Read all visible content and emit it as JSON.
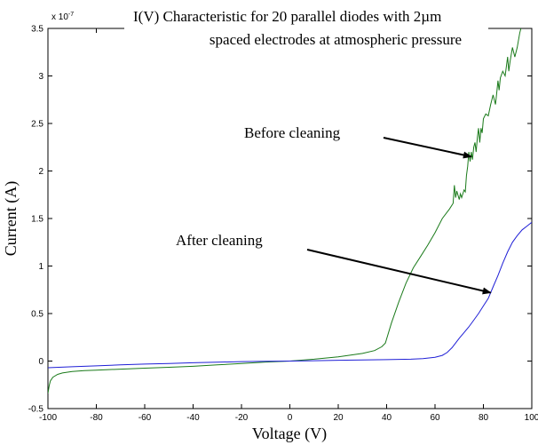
{
  "chart_data": {
    "type": "line",
    "title_line1": "I(V) Characteristic for 20 parallel diodes with 2µm",
    "title_line2": "spaced electrodes at atmospheric pressure",
    "xlabel": "Voltage (V)",
    "ylabel": "Current (A)",
    "y_exponent_label": "x 10",
    "y_exponent_power": "-7",
    "xlim": [
      -100,
      100
    ],
    "ylim": [
      -0.5,
      3.5
    ],
    "y_scale_factor": 1e-07,
    "x_ticks": [
      -100,
      -80,
      -60,
      -40,
      -20,
      0,
      20,
      40,
      60,
      80,
      100
    ],
    "y_ticks": [
      -0.5,
      0,
      0.5,
      1,
      1.5,
      2,
      2.5,
      3,
      3.5
    ],
    "grid": false,
    "annotations": [
      {
        "text": "Before cleaning",
        "arrow_to": [
          75,
          2.15
        ]
      },
      {
        "text": "After cleaning",
        "arrow_to": [
          83,
          0.72
        ]
      }
    ],
    "series": [
      {
        "color": "#1a7a1a",
        "points": [
          [
            -100,
            -0.34
          ],
          [
            -99.5,
            -0.26
          ],
          [
            -99,
            -0.21
          ],
          [
            -98,
            -0.17
          ],
          [
            -96,
            -0.14
          ],
          [
            -94,
            -0.125
          ],
          [
            -90,
            -0.11
          ],
          [
            -85,
            -0.1
          ],
          [
            -80,
            -0.095
          ],
          [
            -70,
            -0.085
          ],
          [
            -60,
            -0.075
          ],
          [
            -50,
            -0.065
          ],
          [
            -40,
            -0.055
          ],
          [
            -30,
            -0.04
          ],
          [
            -20,
            -0.025
          ],
          [
            -10,
            -0.01
          ],
          [
            0,
            0
          ],
          [
            10,
            0.02
          ],
          [
            20,
            0.045
          ],
          [
            30,
            0.08
          ],
          [
            35,
            0.11
          ],
          [
            38,
            0.15
          ],
          [
            39.5,
            0.19
          ],
          [
            42,
            0.4
          ],
          [
            45,
            0.62
          ],
          [
            48,
            0.82
          ],
          [
            51,
            0.98
          ],
          [
            54,
            1.1
          ],
          [
            57,
            1.22
          ],
          [
            60,
            1.35
          ],
          [
            63,
            1.5
          ],
          [
            66,
            1.6
          ],
          [
            67.5,
            1.66
          ],
          [
            68,
            1.85
          ],
          [
            68.5,
            1.72
          ],
          [
            69,
            1.79
          ],
          [
            70,
            1.7
          ],
          [
            70.5,
            1.76
          ],
          [
            71,
            1.72
          ],
          [
            72,
            1.8
          ],
          [
            72.5,
            1.78
          ],
          [
            73,
            1.95
          ],
          [
            73.5,
            2.05
          ],
          [
            74,
            2.2
          ],
          [
            74.5,
            2.1
          ],
          [
            75,
            2.2
          ],
          [
            75.5,
            2.12
          ],
          [
            76,
            2.25
          ],
          [
            76.5,
            2.3
          ],
          [
            77,
            2.2
          ],
          [
            77.5,
            2.35
          ],
          [
            78,
            2.45
          ],
          [
            78.5,
            2.3
          ],
          [
            79,
            2.45
          ],
          [
            79.5,
            2.4
          ],
          [
            80,
            2.55
          ],
          [
            81,
            2.6
          ],
          [
            82,
            2.58
          ],
          [
            83,
            2.7
          ],
          [
            84,
            2.8
          ],
          [
            85,
            2.7
          ],
          [
            85.5,
            2.82
          ],
          [
            86,
            2.95
          ],
          [
            86.5,
            2.85
          ],
          [
            87,
            2.98
          ],
          [
            88,
            3.05
          ],
          [
            89,
            3.0
          ],
          [
            90,
            3.2
          ],
          [
            90.5,
            3.05
          ],
          [
            91,
            3.15
          ],
          [
            92,
            3.3
          ],
          [
            93,
            3.2
          ],
          [
            94,
            3.3
          ],
          [
            95,
            3.45
          ],
          [
            96,
            3.55
          ]
        ]
      },
      {
        "color": "#1f1fd6",
        "points": [
          [
            -100,
            -0.07
          ],
          [
            -90,
            -0.06
          ],
          [
            -80,
            -0.05
          ],
          [
            -70,
            -0.04
          ],
          [
            -60,
            -0.032
          ],
          [
            -50,
            -0.025
          ],
          [
            -40,
            -0.018
          ],
          [
            -30,
            -0.012
          ],
          [
            -20,
            -0.006
          ],
          [
            -10,
            -0.002
          ],
          [
            0,
            0
          ],
          [
            10,
            0.004
          ],
          [
            20,
            0.008
          ],
          [
            30,
            0.012
          ],
          [
            40,
            0.015
          ],
          [
            50,
            0.02
          ],
          [
            55,
            0.025
          ],
          [
            60,
            0.04
          ],
          [
            63,
            0.06
          ],
          [
            65,
            0.09
          ],
          [
            67,
            0.14
          ],
          [
            68.5,
            0.19
          ],
          [
            70,
            0.24
          ],
          [
            72,
            0.3
          ],
          [
            74,
            0.36
          ],
          [
            76,
            0.43
          ],
          [
            78,
            0.5
          ],
          [
            80,
            0.58
          ],
          [
            82,
            0.66
          ],
          [
            84,
            0.78
          ],
          [
            86,
            0.9
          ],
          [
            88,
            1.03
          ],
          [
            90,
            1.15
          ],
          [
            92,
            1.25
          ],
          [
            94,
            1.32
          ],
          [
            96,
            1.38
          ],
          [
            98,
            1.42
          ],
          [
            100,
            1.46
          ]
        ]
      }
    ]
  }
}
